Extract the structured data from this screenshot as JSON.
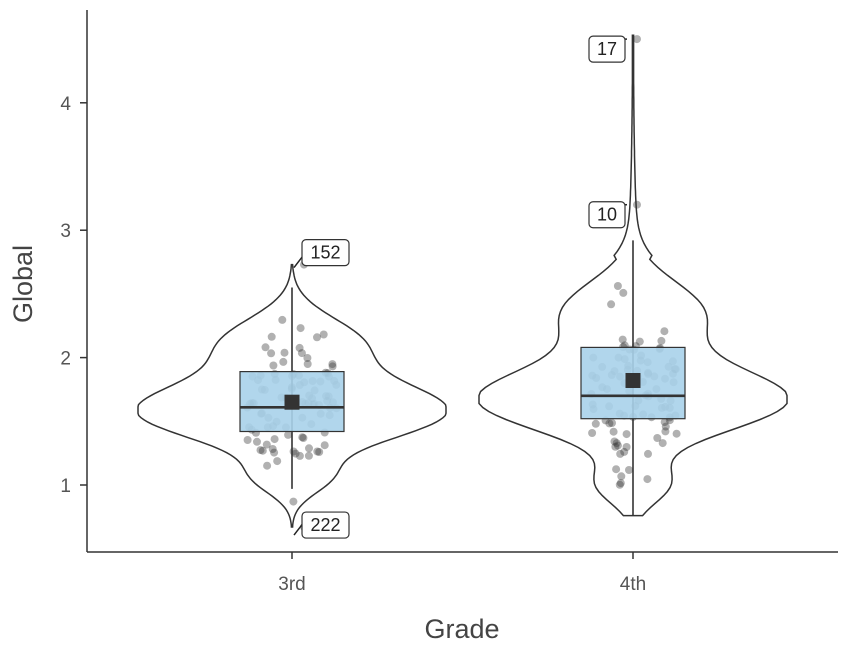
{
  "chart_data": {
    "type": "violin",
    "xlabel": "Grade",
    "ylabel": "Global",
    "categories": [
      "3rd",
      "4th"
    ],
    "yticks": [
      "1",
      "2",
      "3",
      "4"
    ],
    "ylim": [
      0.5,
      4.7
    ],
    "grid": false,
    "legend": "none",
    "colors": {
      "box_fill": "#a9d1ea",
      "box_stroke": "#333333",
      "violin_stroke": "#333333",
      "point": "#333333",
      "mean_marker": "#333333"
    },
    "groups": [
      {
        "name": "3rd",
        "box": {
          "q1": 1.42,
          "median": 1.61,
          "q3": 1.89,
          "whisker_low": 0.97,
          "whisker_high": 2.55
        },
        "mean": 1.65,
        "violin": {
          "min": 0.67,
          "max": 2.73
        },
        "outliers": [
          {
            "label": "152",
            "y": 2.73
          },
          {
            "label": "222",
            "y": 0.67
          }
        ]
      },
      {
        "name": "4th",
        "box": {
          "q1": 1.52,
          "median": 1.7,
          "q3": 2.08,
          "whisker_low": 0.76,
          "whisker_high": 2.92
        },
        "mean": 1.82,
        "violin": {
          "min": 0.76,
          "max": 4.53
        },
        "outliers": [
          {
            "label": "10",
            "y": 3.2
          },
          {
            "label": "17",
            "y": 4.5
          }
        ]
      }
    ]
  }
}
